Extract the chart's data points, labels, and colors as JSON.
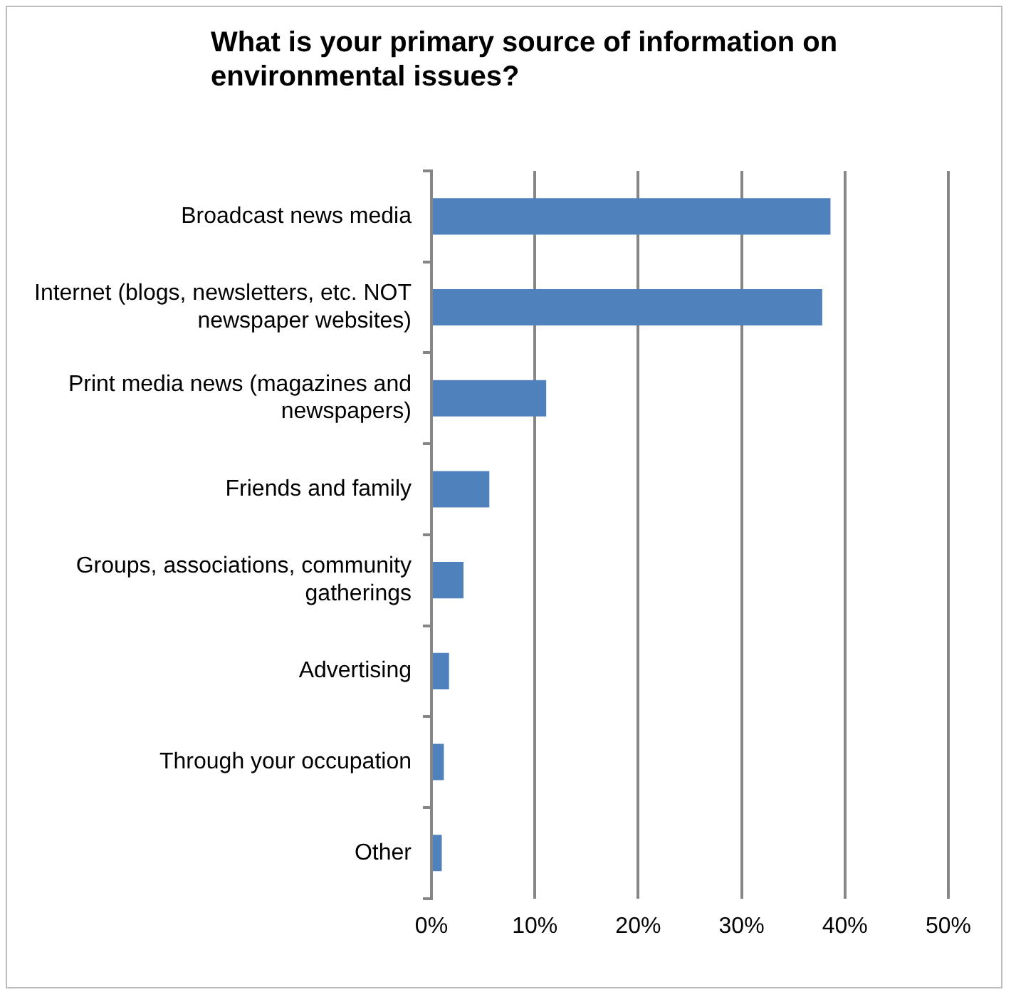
{
  "chart_data": {
    "type": "bar",
    "orientation": "horizontal",
    "title": "What is your primary source of information on environmental issues?",
    "categories": [
      "Broadcast news media",
      "Internet (blogs, newsletters, etc. NOT newspaper websites)",
      "Print media news (magazines and newspapers)",
      "Friends and family",
      "Groups, associations, community gatherings",
      "Advertising",
      "Through your occupation",
      "Other"
    ],
    "values": [
      38.6,
      37.8,
      11.1,
      5.6,
      3.1,
      1.7,
      1.2,
      1.0
    ],
    "color": "#4f81bd",
    "xlim": [
      0,
      50
    ],
    "xticks": [
      {
        "value": 0,
        "label": "0%"
      },
      {
        "value": 10,
        "label": "10%"
      },
      {
        "value": 20,
        "label": "20%"
      },
      {
        "value": 30,
        "label": "30%"
      },
      {
        "value": 40,
        "label": "40%"
      },
      {
        "value": 50,
        "label": "50%"
      }
    ],
    "grid": "x",
    "legend": false
  }
}
